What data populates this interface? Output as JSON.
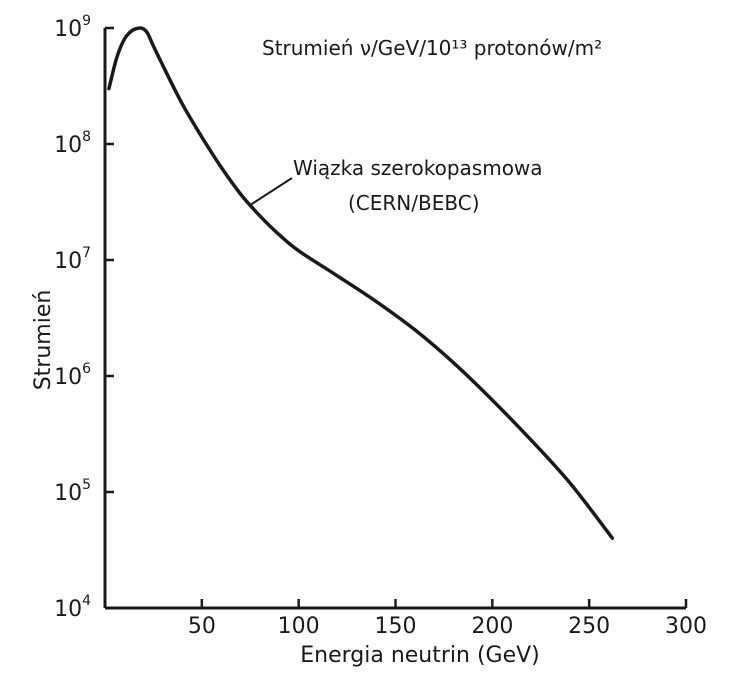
{
  "chart_data": {
    "type": "line",
    "title": "",
    "xlabel": "Energia neutrin (GeV)",
    "ylabel": "Strumień",
    "xlim": [
      0,
      300
    ],
    "ylim": [
      10000,
      1000000000
    ],
    "yscale": "log",
    "grid": false,
    "legend": "none",
    "x_ticks": [
      {
        "value": 50,
        "label": "50"
      },
      {
        "value": 100,
        "label": "100"
      },
      {
        "value": 150,
        "label": "150"
      },
      {
        "value": 200,
        "label": "200"
      },
      {
        "value": 250,
        "label": "250"
      },
      {
        "value": 300,
        "label": "300"
      }
    ],
    "y_ticks": [
      {
        "value": 10000,
        "base": "10",
        "exp": "4"
      },
      {
        "value": 100000,
        "base": "10",
        "exp": "5"
      },
      {
        "value": 1000000,
        "base": "10",
        "exp": "6"
      },
      {
        "value": 10000000,
        "base": "10",
        "exp": "7"
      },
      {
        "value": 100000000,
        "base": "10",
        "exp": "8"
      },
      {
        "value": 1000000000,
        "base": "10",
        "exp": "9"
      }
    ],
    "series": [
      {
        "name": "Wiązka szerokopasmowa (CERN/BEBC)",
        "color": "#1a1a1a",
        "x": [
          2,
          6,
          10,
          14,
          18,
          20,
          22,
          25,
          30,
          40,
          50,
          60,
          70,
          80,
          90,
          100,
          120,
          140,
          160,
          180,
          200,
          220,
          240,
          262
        ],
        "y": [
          300000000,
          550000000,
          800000000,
          950000000,
          1000000000,
          980000000,
          900000000,
          700000000,
          470000000,
          220000000,
          115000000,
          63000000,
          37000000,
          24000000,
          16500000,
          12000000,
          7300000,
          4400000,
          2500000,
          1300000,
          620000,
          280000,
          120000,
          40000
        ]
      }
    ],
    "annotations": {
      "units_text": "Strumień ν/GeV/10¹³ protonów/m²",
      "series_label_line1": "Wiązka szerokopasmowa",
      "series_label_line2": "(CERN/BEBC)",
      "leader_to_x": 75
    }
  }
}
